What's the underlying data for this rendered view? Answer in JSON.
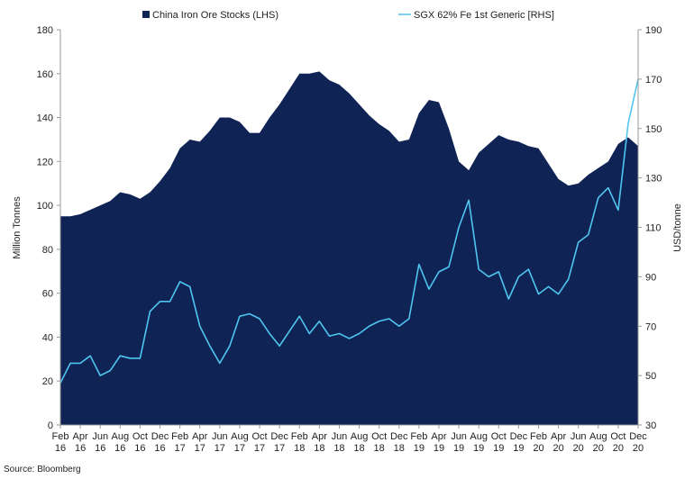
{
  "chart_data": {
    "type": "area",
    "source": "Source: Bloomberg",
    "colors": {
      "stocks": "#0f2355",
      "price": "#4fc6ef"
    },
    "legend_placement": "top",
    "grid": false,
    "x_labels": [
      [
        "Feb",
        "16"
      ],
      [
        "Apr",
        "16"
      ],
      [
        "Jun",
        "16"
      ],
      [
        "Aug",
        "16"
      ],
      [
        "Oct",
        "16"
      ],
      [
        "Dec",
        "16"
      ],
      [
        "Feb",
        "17"
      ],
      [
        "Apr",
        "17"
      ],
      [
        "Jun",
        "17"
      ],
      [
        "Aug",
        "17"
      ],
      [
        "Oct",
        "17"
      ],
      [
        "Dec",
        "17"
      ],
      [
        "Feb",
        "18"
      ],
      [
        "Apr",
        "18"
      ],
      [
        "Jun",
        "18"
      ],
      [
        "Aug",
        "18"
      ],
      [
        "Oct",
        "18"
      ],
      [
        "Dec",
        "18"
      ],
      [
        "Feb",
        "19"
      ],
      [
        "Apr",
        "19"
      ],
      [
        "Jun",
        "19"
      ],
      [
        "Aug",
        "19"
      ],
      [
        "Oct",
        "19"
      ],
      [
        "Dec",
        "19"
      ],
      [
        "Feb",
        "20"
      ],
      [
        "Apr",
        "20"
      ],
      [
        "Jun",
        "20"
      ],
      [
        "Aug",
        "20"
      ],
      [
        "Oct",
        "20"
      ],
      [
        "Dec",
        "20"
      ]
    ],
    "y_left": {
      "label": "Million Tonnes",
      "min": 0,
      "max": 180,
      "ticks": [
        0,
        20,
        40,
        60,
        80,
        100,
        120,
        140,
        160,
        180
      ]
    },
    "y_right": {
      "label": "USD/tonne",
      "min": 30,
      "max": 190,
      "ticks": [
        30,
        50,
        70,
        90,
        110,
        130,
        150,
        170,
        190
      ]
    },
    "series": [
      {
        "name": "China Iron Ore Stocks (LHS)",
        "axis": "left",
        "style": "area",
        "x": [
          "2016-02",
          "2016-03",
          "2016-04",
          "2016-05",
          "2016-06",
          "2016-07",
          "2016-08",
          "2016-09",
          "2016-10",
          "2016-11",
          "2016-12",
          "2017-01",
          "2017-02",
          "2017-03",
          "2017-04",
          "2017-05",
          "2017-06",
          "2017-07",
          "2017-08",
          "2017-09",
          "2017-10",
          "2017-11",
          "2017-12",
          "2018-01",
          "2018-02",
          "2018-03",
          "2018-04",
          "2018-05",
          "2018-06",
          "2018-07",
          "2018-08",
          "2018-09",
          "2018-10",
          "2018-11",
          "2018-12",
          "2019-01",
          "2019-02",
          "2019-03",
          "2019-04",
          "2019-05",
          "2019-06",
          "2019-07",
          "2019-08",
          "2019-09",
          "2019-10",
          "2019-11",
          "2019-12",
          "2020-01",
          "2020-02",
          "2020-03",
          "2020-04",
          "2020-05",
          "2020-06",
          "2020-07",
          "2020-08",
          "2020-09",
          "2020-10",
          "2020-11",
          "2020-12"
        ],
        "values": [
          95,
          95,
          96,
          98,
          100,
          102,
          106,
          105,
          103,
          106,
          111,
          117,
          126,
          130,
          129,
          134,
          140,
          140,
          138,
          133,
          133,
          140,
          146,
          153,
          160,
          160,
          161,
          157,
          155,
          151,
          146,
          141,
          137,
          134,
          129,
          130,
          142,
          148,
          147,
          135,
          120,
          116,
          124,
          128,
          132,
          130,
          129,
          127,
          126,
          119,
          112,
          109,
          110,
          114,
          117,
          120,
          128,
          131,
          127
        ]
      },
      {
        "name": "SGX 62% Fe 1st Generic [RHS]",
        "axis": "right",
        "style": "line",
        "x": [
          "2016-02",
          "2016-03",
          "2016-04",
          "2016-05",
          "2016-06",
          "2016-07",
          "2016-08",
          "2016-09",
          "2016-10",
          "2016-11",
          "2016-12",
          "2017-01",
          "2017-02",
          "2017-03",
          "2017-04",
          "2017-05",
          "2017-06",
          "2017-07",
          "2017-08",
          "2017-09",
          "2017-10",
          "2017-11",
          "2017-12",
          "2018-01",
          "2018-02",
          "2018-03",
          "2018-04",
          "2018-05",
          "2018-06",
          "2018-07",
          "2018-08",
          "2018-09",
          "2018-10",
          "2018-11",
          "2018-12",
          "2019-01",
          "2019-02",
          "2019-03",
          "2019-04",
          "2019-05",
          "2019-06",
          "2019-07",
          "2019-08",
          "2019-09",
          "2019-10",
          "2019-11",
          "2019-12",
          "2020-01",
          "2020-02",
          "2020-03",
          "2020-04",
          "2020-05",
          "2020-06",
          "2020-07",
          "2020-08",
          "2020-09",
          "2020-10",
          "2020-11",
          "2020-12"
        ],
        "values": [
          47,
          55,
          55,
          58,
          50,
          52,
          58,
          57,
          57,
          76,
          80,
          80,
          88,
          86,
          70,
          62,
          55,
          62,
          74,
          75,
          73,
          67,
          62,
          68,
          74,
          67,
          72,
          66,
          67,
          65,
          67,
          70,
          72,
          73,
          70,
          73,
          95,
          85,
          92,
          94,
          110,
          121,
          93,
          90,
          92,
          81,
          90,
          93,
          83,
          86,
          83,
          89,
          104,
          107,
          122,
          126,
          117,
          152,
          170
        ]
      }
    ]
  }
}
